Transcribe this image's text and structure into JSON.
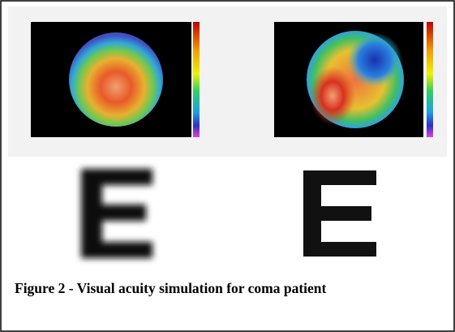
{
  "figure": {
    "caption": "Figure 2 - Visual acuity simulation for coma patient"
  }
}
